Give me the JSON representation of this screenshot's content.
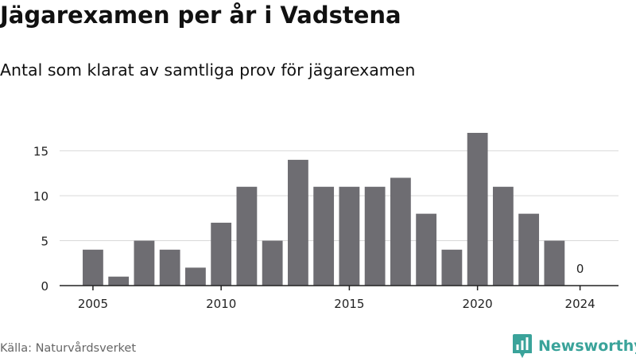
{
  "header": {
    "title": "Jägarexamen per år i Vadstena",
    "subtitle": "Antal som klarat av samtliga prov för jägarexamen"
  },
  "footer": {
    "source": "Källa: Naturvårdsverket",
    "brand": "Newsworthy",
    "brand_color": "#3aa39a"
  },
  "chart_data": {
    "type": "bar",
    "x": [
      2005,
      2006,
      2007,
      2008,
      2009,
      2010,
      2011,
      2012,
      2013,
      2014,
      2015,
      2016,
      2017,
      2018,
      2019,
      2020,
      2021,
      2022,
      2023,
      2024
    ],
    "values": [
      4,
      1,
      5,
      4,
      2,
      7,
      11,
      5,
      14,
      11,
      11,
      11,
      12,
      8,
      4,
      17,
      11,
      8,
      5,
      0
    ],
    "x_tick_labels": [
      "2005",
      "2010",
      "2015",
      "2020",
      "2024"
    ],
    "y_ticks": [
      0,
      5,
      10,
      15
    ],
    "ylim": [
      0,
      17
    ],
    "xlim": [
      2003.7,
      2025.5
    ],
    "annotations": [
      {
        "x": 2024,
        "text": "0"
      }
    ],
    "grid": "horizontal",
    "bar_color": "#6e6d72",
    "xlabel": "",
    "ylabel": ""
  }
}
